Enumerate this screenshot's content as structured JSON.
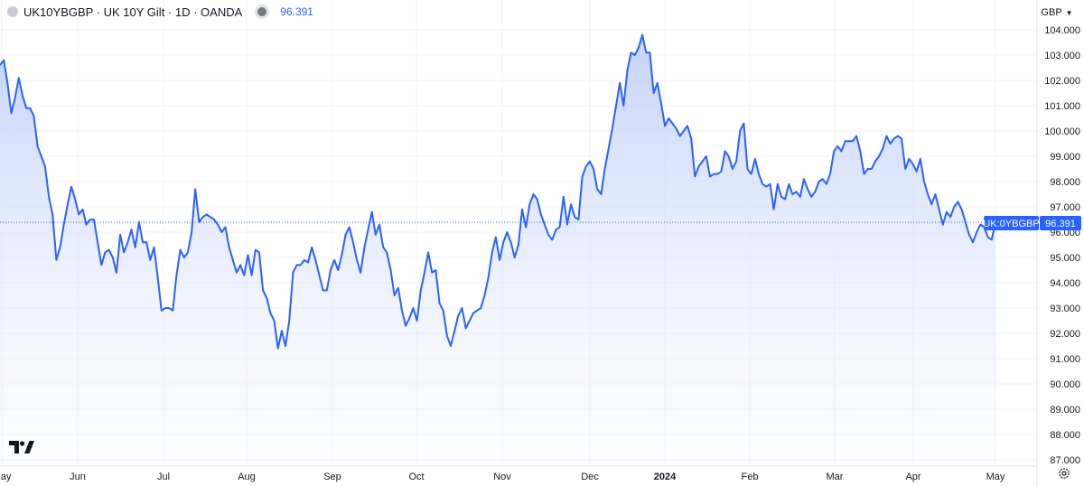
{
  "header": {
    "symbol_line": "UK10YBGBP · UK 10Y Gilt · 1D · OANDA",
    "price": "96.391"
  },
  "currency": {
    "label": "GBP"
  },
  "price_tags": {
    "symbol": "UK:0YBGBP",
    "value": "96.391"
  },
  "icons": [
    "symbol-logo-icon",
    "market-status-icon",
    "chevron-down-icon",
    "tradingview-logo-icon",
    "settings-gear-icon"
  ],
  "colors": {
    "line": "#2962ff",
    "fill_top": "#b8c9f7",
    "grid": "#f0f3fa",
    "price_line": "#2962ff"
  },
  "chart_data": {
    "type": "area",
    "title": "UK 10Y Gilt",
    "ylim": [
      87.0,
      104.0
    ],
    "y_ticks": [
      "104.000",
      "103.000",
      "102.000",
      "101.000",
      "100.000",
      "99.000",
      "98.000",
      "97.000",
      "96.000",
      "95.000",
      "94.000",
      "93.000",
      "92.000",
      "91.000",
      "90.000",
      "89.000",
      "88.000",
      "87.000"
    ],
    "x_ticks": [
      "May",
      "Jun",
      "Jul",
      "Aug",
      "Sep",
      "Oct",
      "Nov",
      "Dec",
      "2024",
      "Feb",
      "Mar",
      "Apr",
      "May"
    ],
    "last_value": 96.391,
    "series": [
      {
        "values": [
          102.6,
          102.8,
          101.9,
          100.7,
          101.3,
          102.1,
          101.4,
          100.9,
          100.9,
          100.6,
          99.4,
          99.0,
          98.6,
          97.4,
          96.7,
          94.9,
          95.4,
          96.3,
          97.1,
          97.8,
          97.3,
          96.7,
          96.9,
          96.3,
          96.5,
          96.5,
          95.6,
          94.7,
          95.2,
          95.3,
          95.0,
          94.4,
          95.9,
          95.2,
          95.6,
          96.1,
          95.4,
          96.4,
          95.6,
          95.6,
          94.9,
          95.4,
          94.2,
          92.9,
          93.0,
          93.0,
          92.9,
          94.3,
          95.3,
          95.0,
          95.2,
          96.0,
          97.7,
          96.4,
          96.6,
          96.7,
          96.6,
          96.5,
          96.3,
          96.0,
          96.2,
          95.4,
          94.9,
          94.4,
          94.7,
          94.3,
          95.1,
          94.3,
          95.3,
          95.2,
          93.7,
          93.4,
          92.8,
          92.5,
          91.4,
          92.1,
          91.5,
          92.5,
          94.4,
          94.7,
          94.7,
          94.9,
          94.8,
          95.4,
          94.9,
          94.3,
          93.7,
          93.7,
          94.5,
          94.9,
          94.5,
          95.1,
          95.9,
          96.2,
          95.6,
          94.9,
          94.4,
          95.4,
          96.1,
          96.8,
          95.9,
          96.3,
          95.4,
          95.2,
          94.5,
          93.5,
          93.8,
          92.9,
          92.3,
          92.6,
          93.0,
          92.5,
          93.7,
          94.4,
          95.2,
          94.4,
          94.5,
          93.2,
          92.9,
          91.9,
          91.5,
          92.1,
          92.7,
          93.0,
          92.2,
          92.5,
          92.8,
          92.9,
          93.0,
          93.5,
          94.2,
          95.2,
          95.8,
          94.9,
          95.6,
          96.0,
          95.6,
          95.0,
          95.5,
          96.9,
          96.2,
          97.1,
          97.5,
          97.3,
          96.7,
          96.3,
          95.9,
          95.7,
          96.1,
          96.2,
          97.4,
          96.3,
          97.1,
          96.6,
          96.5,
          98.2,
          98.6,
          98.8,
          98.5,
          97.7,
          97.5,
          98.5,
          99.3,
          100.1,
          101.0,
          101.9,
          101.0,
          102.4,
          103.1,
          103.0,
          103.3,
          103.8,
          103.1,
          103.1,
          101.5,
          101.9,
          101.1,
          100.2,
          100.5,
          100.3,
          100.1,
          99.8,
          100.0,
          100.2,
          99.7,
          98.2,
          98.6,
          98.8,
          99.0,
          98.2,
          98.3,
          98.3,
          98.4,
          99.2,
          99.0,
          98.5,
          98.8,
          100.0,
          100.3,
          98.5,
          98.3,
          98.9,
          98.3,
          97.9,
          97.8,
          97.9,
          96.9,
          97.9,
          97.4,
          97.3,
          97.9,
          97.5,
          97.6,
          97.4,
          98.1,
          97.7,
          97.4,
          97.6,
          98.0,
          98.1,
          97.9,
          98.3,
          99.2,
          99.4,
          99.2,
          99.6,
          99.6,
          99.6,
          99.8,
          99.2,
          98.3,
          98.5,
          98.5,
          98.8,
          99.0,
          99.3,
          99.8,
          99.5,
          99.7,
          99.8,
          99.7,
          98.5,
          98.9,
          98.7,
          98.4,
          98.9,
          98.0,
          97.5,
          97.1,
          97.5,
          96.9,
          96.3,
          96.8,
          96.6,
          97.0,
          97.2,
          96.9,
          96.4,
          95.9,
          95.6,
          96.0,
          96.3,
          96.2,
          95.8,
          95.7,
          96.391
        ]
      }
    ]
  }
}
